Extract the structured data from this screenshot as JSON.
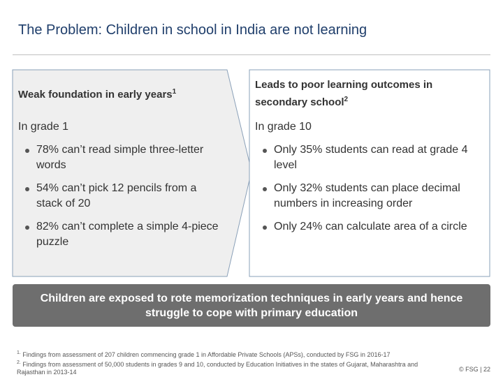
{
  "title": "The Problem: Children in school in India are not learning",
  "left": {
    "heading": "Weak foundation in early years",
    "heading_note": "1",
    "subheading": "In grade 1",
    "bullets": [
      "78% can’t read simple three-letter words",
      "54% can’t pick 12 pencils from a stack of 20",
      "82% can’t complete a simple 4-piece puzzle"
    ]
  },
  "right": {
    "heading": "Leads to poor learning outcomes in secondary school",
    "heading_note": "2",
    "subheading": "In grade 10",
    "bullets": [
      "Only 35% students can read at grade 4 level",
      "Only 32% students can place decimal numbers in increasing order",
      "Only 24% can calculate area of a circle"
    ]
  },
  "banner": "Children are exposed to rote memorization techniques in early years and hence struggle to cope with primary education",
  "footnotes": [
    {
      "marker": "1.",
      "text": "Findings from assessment of 207 children commencing grade 1 in Affordable Private Schools (APSs), conducted by FSG in 2016-17"
    },
    {
      "marker": "2.",
      "text": "Findings from assessment of 50,000 students in grades 9 and 10, conducted by Education Initiatives in the states of Gujarat, Maharashtra and Rajasthan in 2013-14"
    }
  ],
  "footer": {
    "copyright": "© FSG",
    "separator": "|",
    "page": "22"
  }
}
